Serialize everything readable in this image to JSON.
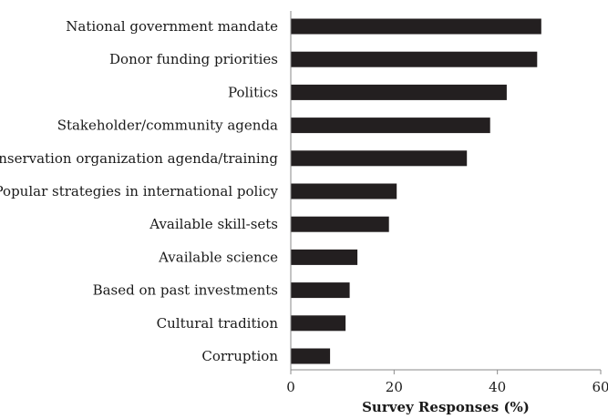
{
  "chart_data": {
    "type": "bar",
    "orientation": "horizontal",
    "categories": [
      "National government mandate",
      "Donor funding priorities",
      "Politics",
      "Stakeholder/community agenda",
      "Conservation organization agenda/training",
      "Popular strategies in international policy",
      "Available skill-sets",
      "Available science",
      "Based on past investments",
      "Cultural tradition",
      "Corruption"
    ],
    "values": [
      48.5,
      47.7,
      41.8,
      38.6,
      34.1,
      20.5,
      19.0,
      12.9,
      11.4,
      10.6,
      7.6
    ],
    "xlabel": "Survey Responses (%)",
    "ylabel": "",
    "xlim": [
      0,
      60
    ],
    "xticks": [
      "0",
      "20",
      "40",
      "60"
    ],
    "bar_color": "#231f20",
    "grid": false,
    "legend": "none"
  }
}
